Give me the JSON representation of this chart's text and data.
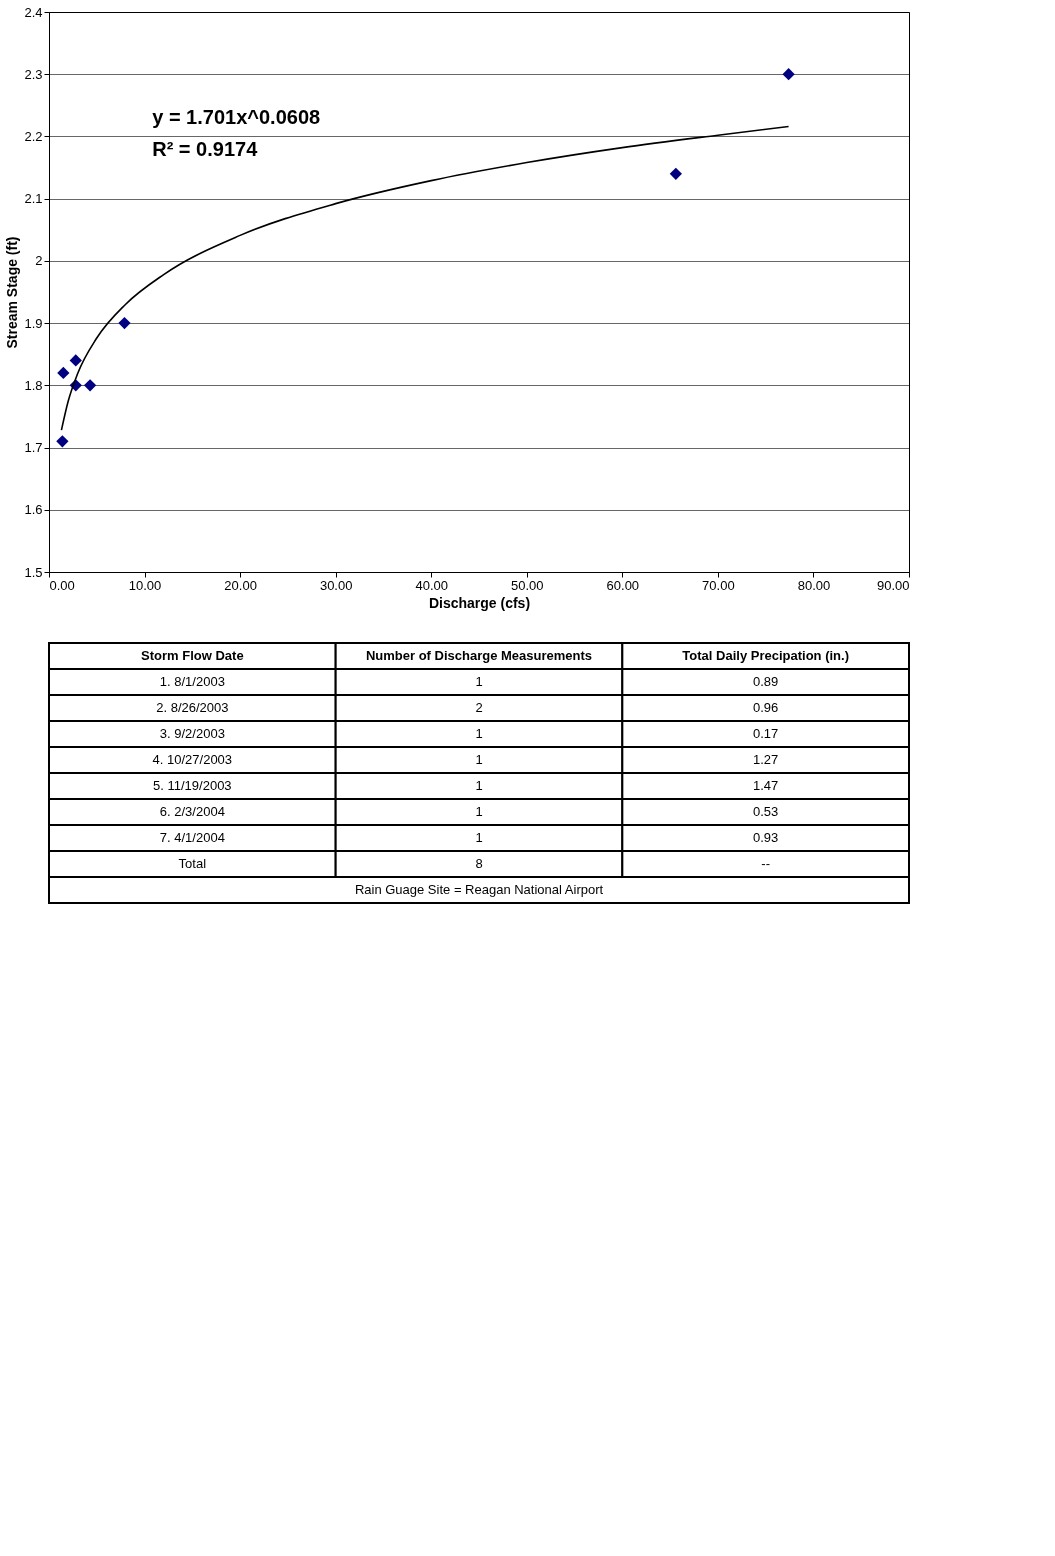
{
  "chart_data": [
    {
      "type": "scatter",
      "xlabel": "Discharge (cfs)",
      "ylabel": "Stream Stage (ft)",
      "xlim": [
        0,
        90
      ],
      "xticks": [
        {
          "value": 0,
          "label": "0.00"
        },
        {
          "value": 10,
          "label": "10.00"
        },
        {
          "value": 20,
          "label": "20.00"
        },
        {
          "value": 30,
          "label": "30.00"
        },
        {
          "value": 40,
          "label": "40.00"
        },
        {
          "value": 50,
          "label": "50.00"
        },
        {
          "value": 60,
          "label": "60.00"
        },
        {
          "value": 70,
          "label": "70.00"
        },
        {
          "value": 80,
          "label": "80.00"
        },
        {
          "value": 90,
          "label": "90.00"
        }
      ],
      "ylim": [
        1.5,
        2.4
      ],
      "yticks": [
        1.5,
        1.6,
        1.7,
        1.8,
        1.9,
        2,
        2.1,
        2.2,
        2.3,
        2.4
      ],
      "grid": "y",
      "marker": "diamond",
      "series": [
        {
          "type": "scatter",
          "color": "#000080",
          "x": [
            77.4,
            65.6,
            7.9,
            2.8,
            1.5,
            4.3,
            2.8,
            1.4
          ],
          "values": [
            2.3,
            2.14,
            1.9,
            1.84,
            1.82,
            1.8,
            1.8,
            1.71
          ]
        },
        {
          "type": "line",
          "marker": "none",
          "color": "#000000",
          "x": [
            1.3,
            2,
            3,
            5,
            8,
            12,
            20,
            30,
            40,
            50,
            60,
            70,
            77.4
          ],
          "values": [
            1.728,
            1.774,
            1.819,
            1.876,
            1.93,
            1.978,
            2.041,
            2.092,
            2.129,
            2.158,
            2.182,
            2.202,
            2.216
          ]
        }
      ],
      "annotations": [
        "y = 1.701x^0.0608",
        "R² = 0.9174"
      ]
    },
    {
      "type": "other",
      "annotations": [
        "Storm Flow Date",
        "Number of Discharge Measurements",
        "Total Daily Precipation (in.)",
        "1.  8/1/2003",
        "1",
        "0.89",
        "2.  8/26/2003",
        "2",
        "0.96",
        "3.  9/2/2003",
        "1",
        "0.17",
        "4.  10/27/2003",
        "1",
        "1.27",
        "5.  11/19/2003",
        "1",
        "1.47",
        "6.  2/3/2004",
        "1",
        "0.53",
        "7.  4/1/2004",
        "1",
        "0.93",
        "Total",
        "8",
        "--",
        "Rain Guage Site = Reagan National Airport"
      ]
    }
  ]
}
